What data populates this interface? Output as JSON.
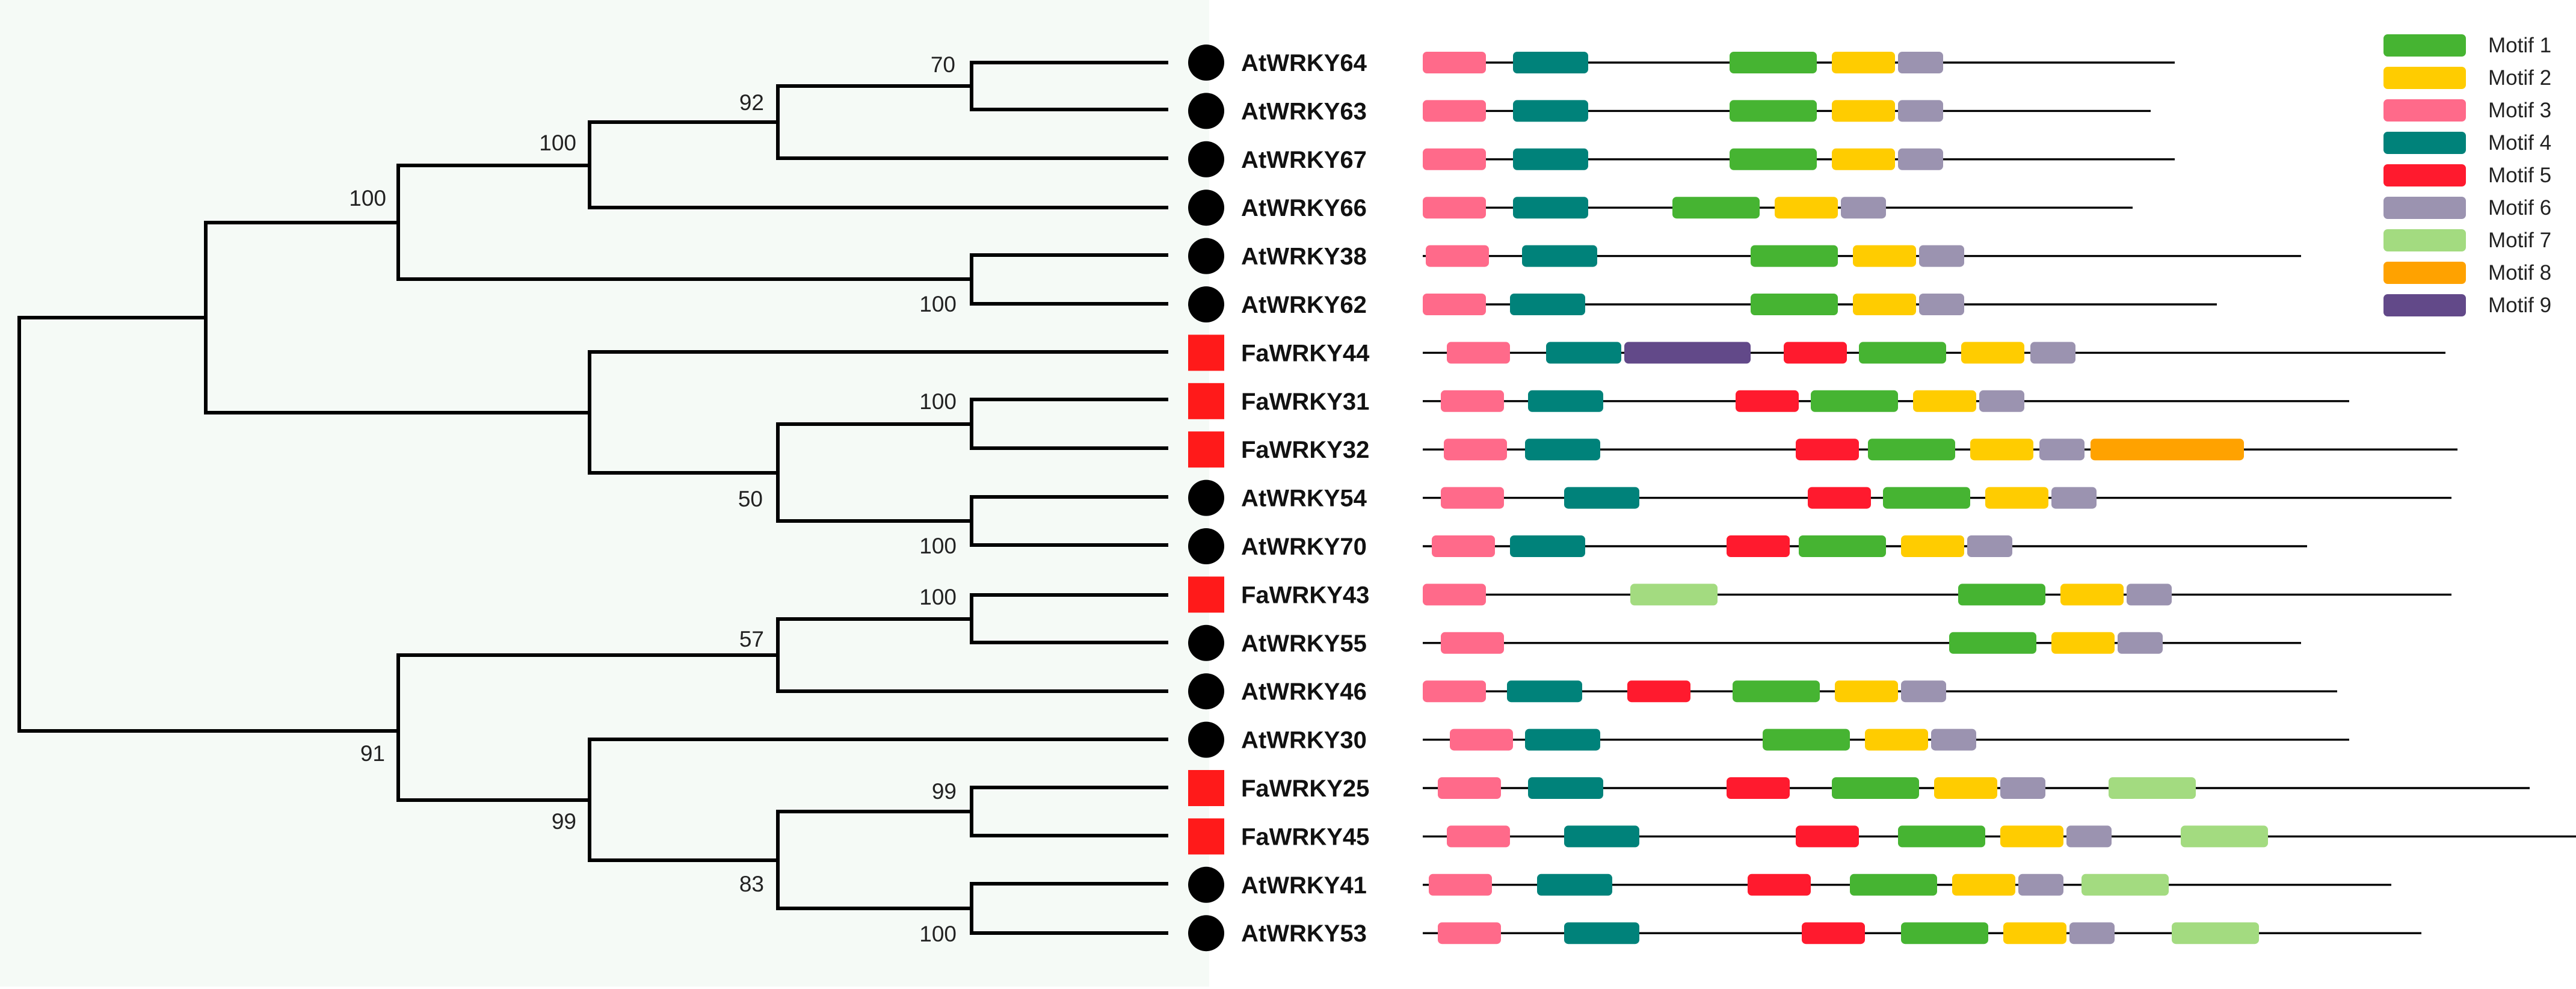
{
  "legend": [
    {
      "label": "Motif 1",
      "color": "#46b432"
    },
    {
      "label": "Motif 2",
      "color": "#ffcc00"
    },
    {
      "label": "Motif 3",
      "color": "#ff6a8a"
    },
    {
      "label": "Motif 4",
      "color": "#00827a"
    },
    {
      "label": "Motif 5",
      "color": "#ff1a2e"
    },
    {
      "label": "Motif 6",
      "color": "#9b93b0"
    },
    {
      "label": "Motif 7",
      "color": "#a3db80"
    },
    {
      "label": "Motif 8",
      "color": "#ffa200"
    },
    {
      "label": "Motif 9",
      "color": "#624989"
    }
  ],
  "marker_colors": {
    "circle": "#000000",
    "square": "#ff1a1a"
  },
  "genes": [
    {
      "name": "AtWRKY64",
      "marker": "circle",
      "length": 1250,
      "motifs": [
        {
          "m": 3,
          "s": 0,
          "e": 105
        },
        {
          "m": 4,
          "s": 150,
          "e": 275
        },
        {
          "m": 1,
          "s": 510,
          "e": 655
        },
        {
          "m": 2,
          "s": 680,
          "e": 785
        },
        {
          "m": 6,
          "s": 790,
          "e": 865
        }
      ]
    },
    {
      "name": "AtWRKY63",
      "marker": "circle",
      "length": 1210,
      "motifs": [
        {
          "m": 3,
          "s": 0,
          "e": 105
        },
        {
          "m": 4,
          "s": 150,
          "e": 275
        },
        {
          "m": 1,
          "s": 510,
          "e": 655
        },
        {
          "m": 2,
          "s": 680,
          "e": 785
        },
        {
          "m": 6,
          "s": 790,
          "e": 865
        }
      ]
    },
    {
      "name": "AtWRKY67",
      "marker": "circle",
      "length": 1250,
      "motifs": [
        {
          "m": 3,
          "s": 0,
          "e": 105
        },
        {
          "m": 4,
          "s": 150,
          "e": 275
        },
        {
          "m": 1,
          "s": 510,
          "e": 655
        },
        {
          "m": 2,
          "s": 680,
          "e": 785
        },
        {
          "m": 6,
          "s": 790,
          "e": 865
        }
      ]
    },
    {
      "name": "AtWRKY66",
      "marker": "circle",
      "length": 1180,
      "motifs": [
        {
          "m": 3,
          "s": 0,
          "e": 105
        },
        {
          "m": 4,
          "s": 150,
          "e": 275
        },
        {
          "m": 1,
          "s": 415,
          "e": 560
        },
        {
          "m": 2,
          "s": 585,
          "e": 690
        },
        {
          "m": 6,
          "s": 695,
          "e": 770
        }
      ]
    },
    {
      "name": "AtWRKY38",
      "marker": "circle",
      "length": 1460,
      "motifs": [
        {
          "m": 3,
          "s": 5,
          "e": 110
        },
        {
          "m": 4,
          "s": 165,
          "e": 290
        },
        {
          "m": 1,
          "s": 545,
          "e": 690
        },
        {
          "m": 2,
          "s": 715,
          "e": 820
        },
        {
          "m": 6,
          "s": 825,
          "e": 900
        }
      ]
    },
    {
      "name": "AtWRKY62",
      "marker": "circle",
      "length": 1320,
      "motifs": [
        {
          "m": 3,
          "s": 0,
          "e": 105
        },
        {
          "m": 4,
          "s": 145,
          "e": 270
        },
        {
          "m": 1,
          "s": 545,
          "e": 690
        },
        {
          "m": 2,
          "s": 715,
          "e": 820
        },
        {
          "m": 6,
          "s": 825,
          "e": 900
        }
      ]
    },
    {
      "name": "FaWRKY44",
      "marker": "square",
      "length": 1700,
      "motifs": [
        {
          "m": 3,
          "s": 40,
          "e": 145
        },
        {
          "m": 4,
          "s": 205,
          "e": 330
        },
        {
          "m": 9,
          "s": 335,
          "e": 545
        },
        {
          "m": 5,
          "s": 600,
          "e": 705
        },
        {
          "m": 1,
          "s": 725,
          "e": 870
        },
        {
          "m": 2,
          "s": 895,
          "e": 1000
        },
        {
          "m": 6,
          "s": 1010,
          "e": 1085
        }
      ]
    },
    {
      "name": "FaWRKY31",
      "marker": "square",
      "length": 1540,
      "motifs": [
        {
          "m": 3,
          "s": 30,
          "e": 135
        },
        {
          "m": 4,
          "s": 175,
          "e": 300
        },
        {
          "m": 5,
          "s": 520,
          "e": 625
        },
        {
          "m": 1,
          "s": 645,
          "e": 790
        },
        {
          "m": 2,
          "s": 815,
          "e": 920
        },
        {
          "m": 6,
          "s": 925,
          "e": 1000
        }
      ]
    },
    {
      "name": "FaWRKY32",
      "marker": "square",
      "length": 1720,
      "motifs": [
        {
          "m": 3,
          "s": 35,
          "e": 140
        },
        {
          "m": 4,
          "s": 170,
          "e": 295
        },
        {
          "m": 5,
          "s": 620,
          "e": 725
        },
        {
          "m": 1,
          "s": 740,
          "e": 885
        },
        {
          "m": 2,
          "s": 910,
          "e": 1015
        },
        {
          "m": 6,
          "s": 1025,
          "e": 1100
        },
        {
          "m": 8,
          "s": 1110,
          "e": 1365
        }
      ]
    },
    {
      "name": "AtWRKY54",
      "marker": "circle",
      "length": 1710,
      "motifs": [
        {
          "m": 3,
          "s": 30,
          "e": 135
        },
        {
          "m": 4,
          "s": 235,
          "e": 360
        },
        {
          "m": 5,
          "s": 640,
          "e": 745
        },
        {
          "m": 1,
          "s": 765,
          "e": 910
        },
        {
          "m": 2,
          "s": 935,
          "e": 1040
        },
        {
          "m": 6,
          "s": 1045,
          "e": 1120
        }
      ]
    },
    {
      "name": "AtWRKY70",
      "marker": "circle",
      "length": 1470,
      "motifs": [
        {
          "m": 3,
          "s": 15,
          "e": 120
        },
        {
          "m": 4,
          "s": 145,
          "e": 270
        },
        {
          "m": 5,
          "s": 505,
          "e": 610
        },
        {
          "m": 1,
          "s": 625,
          "e": 770
        },
        {
          "m": 2,
          "s": 795,
          "e": 900
        },
        {
          "m": 6,
          "s": 905,
          "e": 980
        }
      ]
    },
    {
      "name": "FaWRKY43",
      "marker": "square",
      "length": 1710,
      "motifs": [
        {
          "m": 3,
          "s": 0,
          "e": 105
        },
        {
          "m": 7,
          "s": 345,
          "e": 490
        },
        {
          "m": 1,
          "s": 890,
          "e": 1035
        },
        {
          "m": 2,
          "s": 1060,
          "e": 1165
        },
        {
          "m": 6,
          "s": 1170,
          "e": 1245
        }
      ]
    },
    {
      "name": "AtWRKY55",
      "marker": "circle",
      "length": 1460,
      "motifs": [
        {
          "m": 3,
          "s": 30,
          "e": 135
        },
        {
          "m": 1,
          "s": 875,
          "e": 1020
        },
        {
          "m": 2,
          "s": 1045,
          "e": 1150
        },
        {
          "m": 6,
          "s": 1155,
          "e": 1230
        }
      ]
    },
    {
      "name": "AtWRKY46",
      "marker": "circle",
      "length": 1520,
      "motifs": [
        {
          "m": 3,
          "s": 0,
          "e": 105
        },
        {
          "m": 4,
          "s": 140,
          "e": 265
        },
        {
          "m": 5,
          "s": 340,
          "e": 445
        },
        {
          "m": 1,
          "s": 515,
          "e": 660
        },
        {
          "m": 2,
          "s": 685,
          "e": 790
        },
        {
          "m": 6,
          "s": 795,
          "e": 870
        }
      ]
    },
    {
      "name": "AtWRKY30",
      "marker": "circle",
      "length": 1540,
      "motifs": [
        {
          "m": 3,
          "s": 45,
          "e": 150
        },
        {
          "m": 4,
          "s": 170,
          "e": 295
        },
        {
          "m": 1,
          "s": 565,
          "e": 710
        },
        {
          "m": 2,
          "s": 735,
          "e": 840
        },
        {
          "m": 6,
          "s": 845,
          "e": 920
        }
      ]
    },
    {
      "name": "FaWRKY25",
      "marker": "square",
      "length": 1840,
      "motifs": [
        {
          "m": 3,
          "s": 25,
          "e": 130
        },
        {
          "m": 4,
          "s": 175,
          "e": 300
        },
        {
          "m": 5,
          "s": 505,
          "e": 610
        },
        {
          "m": 1,
          "s": 680,
          "e": 825
        },
        {
          "m": 2,
          "s": 850,
          "e": 955
        },
        {
          "m": 6,
          "s": 960,
          "e": 1035
        },
        {
          "m": 7,
          "s": 1140,
          "e": 1285
        }
      ]
    },
    {
      "name": "FaWRKY45",
      "marker": "square",
      "length": 1920,
      "motifs": [
        {
          "m": 3,
          "s": 40,
          "e": 145
        },
        {
          "m": 4,
          "s": 235,
          "e": 360
        },
        {
          "m": 5,
          "s": 620,
          "e": 725
        },
        {
          "m": 1,
          "s": 790,
          "e": 935
        },
        {
          "m": 2,
          "s": 960,
          "e": 1065
        },
        {
          "m": 6,
          "s": 1070,
          "e": 1145
        },
        {
          "m": 7,
          "s": 1260,
          "e": 1405
        }
      ]
    },
    {
      "name": "AtWRKY41",
      "marker": "circle",
      "length": 1610,
      "motifs": [
        {
          "m": 3,
          "s": 10,
          "e": 115
        },
        {
          "m": 4,
          "s": 190,
          "e": 315
        },
        {
          "m": 5,
          "s": 540,
          "e": 645
        },
        {
          "m": 1,
          "s": 710,
          "e": 855
        },
        {
          "m": 2,
          "s": 880,
          "e": 985
        },
        {
          "m": 6,
          "s": 990,
          "e": 1065
        },
        {
          "m": 7,
          "s": 1095,
          "e": 1240
        }
      ]
    },
    {
      "name": "AtWRKY53",
      "marker": "circle",
      "length": 1660,
      "motifs": [
        {
          "m": 3,
          "s": 25,
          "e": 130
        },
        {
          "m": 4,
          "s": 235,
          "e": 360
        },
        {
          "m": 5,
          "s": 630,
          "e": 735
        },
        {
          "m": 1,
          "s": 795,
          "e": 940
        },
        {
          "m": 2,
          "s": 965,
          "e": 1070
        },
        {
          "m": 6,
          "s": 1075,
          "e": 1150
        },
        {
          "m": 7,
          "s": 1245,
          "e": 1390
        }
      ]
    }
  ],
  "bootstraps": [
    "70",
    "92",
    "100",
    "100",
    "100",
    "100",
    "50",
    "100",
    "100",
    "57",
    "91",
    "99",
    "99",
    "83",
    "100"
  ]
}
